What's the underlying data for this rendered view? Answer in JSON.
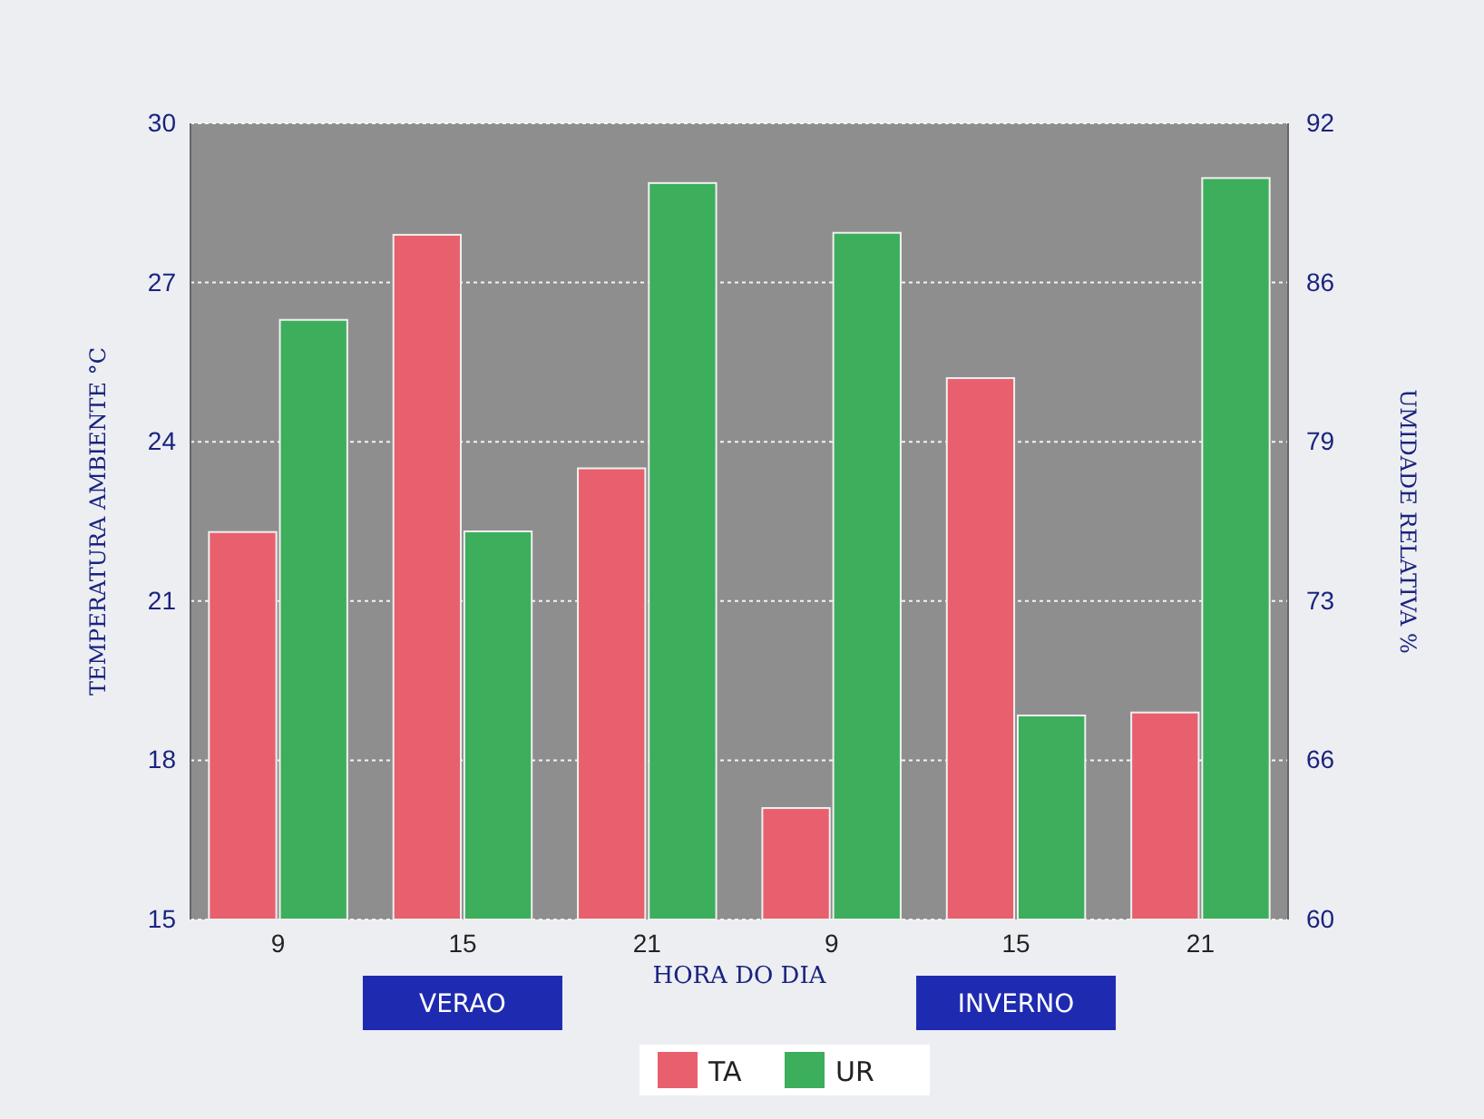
{
  "chart_data": {
    "type": "bar",
    "xlabel": "HORA DO DIA",
    "ylabel": "TEMPERATURA AMBIENTE °C",
    "y2label": "UMIDADE RELATIVA %",
    "categories": [
      "9",
      "15",
      "21",
      "9",
      "15",
      "21"
    ],
    "series": [
      {
        "name": "TA",
        "color": "#e8606e",
        "values": [
          22.3,
          27.9,
          23.5,
          17.1,
          25.2,
          18.9
        ]
      },
      {
        "name": "UR",
        "color": "#3cae5c",
        "axis": "y2",
        "values": [
          84.1,
          75.6,
          89.6,
          87.6,
          68.2,
          89.8
        ]
      }
    ],
    "ylim": [
      15,
      30
    ],
    "yticks": [
      15,
      18,
      21,
      24,
      27,
      30
    ],
    "y2lim": [
      60,
      92
    ],
    "y2ticks": [
      60,
      {
        "value": 66.4,
        "label": "66"
      },
      {
        "value": 72.8,
        "label": "73"
      },
      {
        "value": 79.2,
        "label": "79"
      },
      {
        "value": 85.6,
        "label": "86"
      },
      92
    ],
    "grid": "y",
    "legend": "bottom",
    "annotations": [
      "VERAO",
      "INVERNO"
    ]
  }
}
